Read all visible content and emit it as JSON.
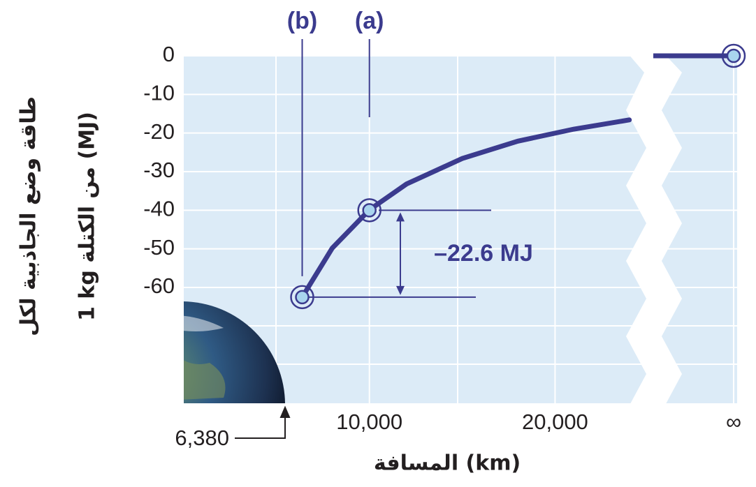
{
  "chart_data": {
    "type": "line",
    "y_label_lines": [
      "طاقة وضع الجاذبية لكل",
      "1 kg من الكتلة (MJ)"
    ],
    "x_label": "المسافة (km)",
    "series": [
      {
        "color": "#3b3b8e",
        "x": [
          6380,
          8000,
          10000,
          12000,
          15000,
          18000,
          21000,
          24000
        ],
        "values": [
          -62.5,
          -49.8,
          -39.9,
          -33.2,
          -26.6,
          -22.1,
          -19.0,
          -16.6
        ]
      }
    ],
    "points": [
      {
        "label": "(b)",
        "x": 6380,
        "y": -62.5
      },
      {
        "label": "(a)",
        "x": 10000,
        "y": -40
      }
    ],
    "difference_label": "–22.6 MJ",
    "distance_annotation": "6,380",
    "infinity": {
      "label": "∞",
      "value": 0
    },
    "xlim": [
      0,
      24200
    ],
    "ylim": [
      -90,
      0
    ],
    "xticks": [
      {
        "value": 10000,
        "label": "10,000"
      },
      {
        "value": 20000,
        "label": "20,000"
      }
    ],
    "yticks": [
      0,
      -10,
      -20,
      -30,
      -40,
      -50,
      -60
    ],
    "grid": true
  }
}
